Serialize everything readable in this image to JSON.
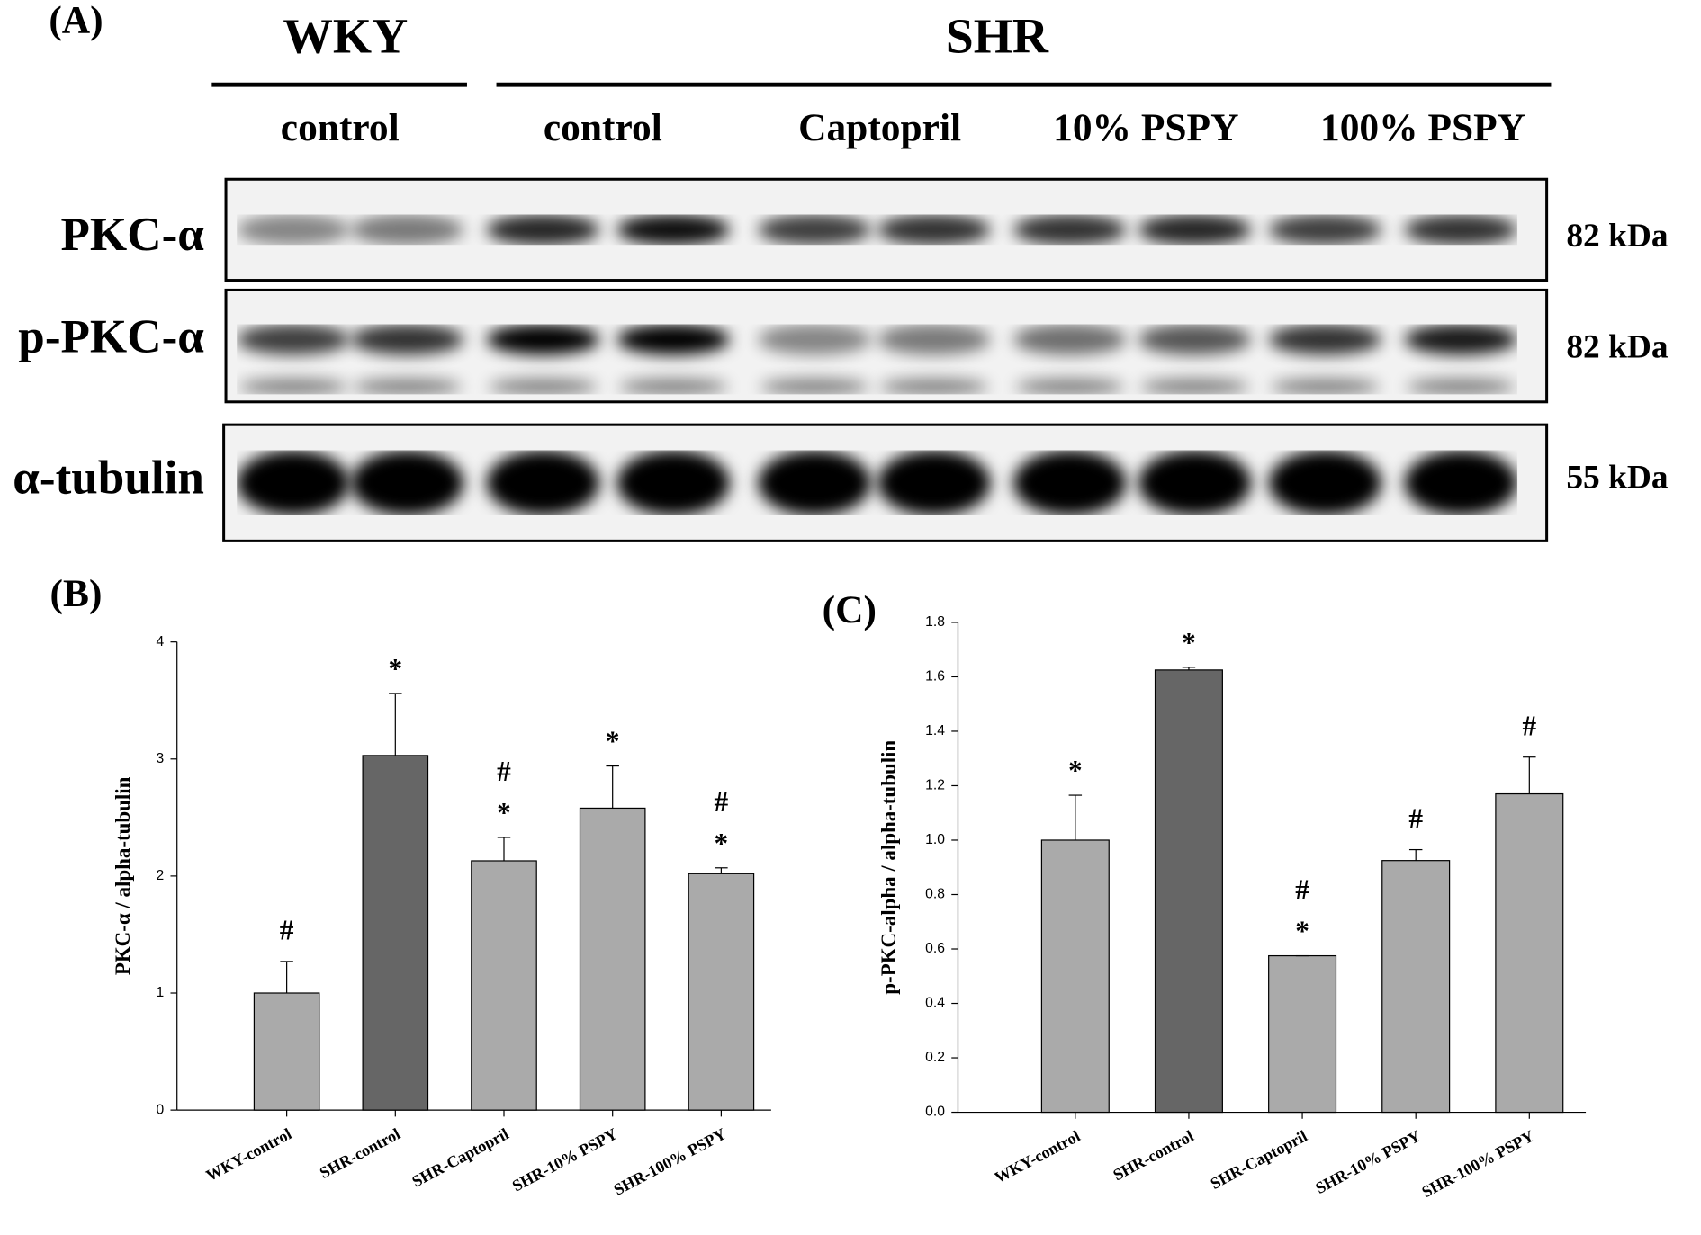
{
  "blot": {
    "panel_label": "(A)",
    "strains": [
      "WKY",
      "SHR"
    ],
    "treatments": [
      "control",
      "control",
      "Captopril",
      "10% PSPY",
      "100% PSPY"
    ],
    "rows": [
      {
        "protein": "PKC-α",
        "size": "82 kDa"
      },
      {
        "protein": "p-PKC-α",
        "size": "82 kDa"
      },
      {
        "protein": "α-tubulin",
        "size": "55 kDa"
      }
    ]
  },
  "chart_data": [
    {
      "type": "bar",
      "panel_label": "(B)",
      "y_label": "PKC-α / alpha-tubulin",
      "categories": [
        "WKY-control",
        "SHR-control",
        "SHR-Captopril",
        "SHR-10% PSPY",
        "SHR-100% PSPY"
      ],
      "values": [
        1.0,
        3.03,
        2.13,
        2.58,
        2.02
      ],
      "errors": [
        0.27,
        0.53,
        0.2,
        0.36,
        0.05
      ],
      "colors": [
        "#aaaaaa",
        "#666666",
        "#aaaaaa",
        "#aaaaaa",
        "#aaaaaa"
      ],
      "annotations": [
        [
          "#"
        ],
        [
          "*"
        ],
        [
          "#",
          "*"
        ],
        [
          "*"
        ],
        [
          "#",
          "*"
        ]
      ],
      "ylim": [
        0,
        4
      ],
      "yticks": [
        0,
        1,
        2,
        3,
        4
      ]
    },
    {
      "type": "bar",
      "panel_label": "(C)",
      "y_label": "p-PKC-alpha / alpha-tubulin",
      "categories": [
        "WKY-control",
        "SHR-control",
        "SHR-Captopril",
        "SHR-10% PSPY",
        "SHR-100% PSPY"
      ],
      "values": [
        1.0,
        1.625,
        0.575,
        0.925,
        1.17
      ],
      "errors": [
        0.165,
        0.01,
        0,
        0.04,
        0.135
      ],
      "colors": [
        "#aaaaaa",
        "#666666",
        "#aaaaaa",
        "#aaaaaa",
        "#aaaaaa"
      ],
      "annotations": [
        [
          "*"
        ],
        [
          "*"
        ],
        [
          "#",
          "*"
        ],
        [
          "#"
        ],
        [
          "#"
        ]
      ],
      "ylim": [
        0,
        1.8
      ],
      "yticks": [
        {
          "value": 0,
          "label": "0.0"
        },
        0.2,
        0.4,
        0.6,
        0.8,
        {
          "value": 1,
          "label": "1.0"
        },
        1.2,
        1.4,
        1.6,
        1.8
      ]
    }
  ]
}
